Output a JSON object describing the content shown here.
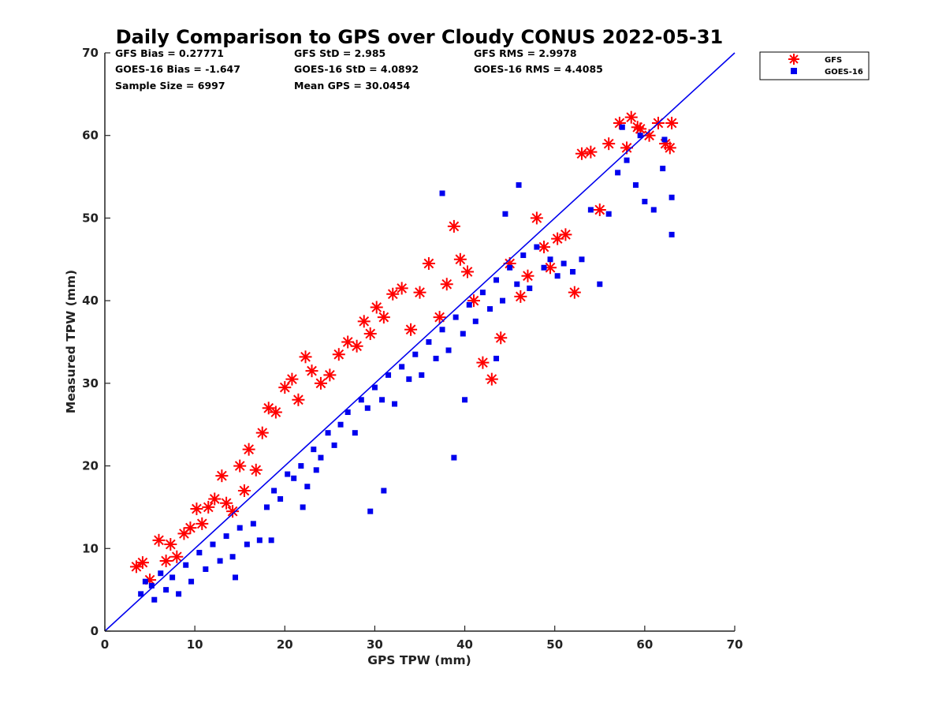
{
  "chart_data": {
    "type": "scatter",
    "title": "Daily Comparison to GPS over Cloudy CONUS 2022-05-31",
    "xlabel": "GPS TPW (mm)",
    "ylabel": "Measured TPW (mm)",
    "xlim": [
      0,
      70
    ],
    "ylim": [
      0,
      70
    ],
    "xticks": [
      "0",
      "10",
      "20",
      "30",
      "40",
      "50",
      "60",
      "70"
    ],
    "yticks": [
      "0",
      "10",
      "20",
      "30",
      "40",
      "50",
      "60",
      "70"
    ],
    "grid": false,
    "legend_position": "outside-top-right",
    "reference_line": {
      "x": [
        0,
        70
      ],
      "y": [
        0,
        70
      ],
      "color": "#0000ee"
    },
    "stats": {
      "gfs_bias": "GFS Bias = 0.27771",
      "gfs_std": "GFS StD = 2.985",
      "gfs_rms": "GFS RMS = 2.9978",
      "goes_bias": "GOES-16 Bias = -1.647",
      "goes_std": "GOES-16 StD = 4.0892",
      "goes_rms": "GOES-16 RMS = 4.4085",
      "sample_size": "Sample Size = 6997",
      "mean_gps": "Mean GPS = 30.0454"
    },
    "series": [
      {
        "name": "GFS",
        "marker": "asterisk",
        "color": "#ff0000",
        "x": [
          3.5,
          4.2,
          5.0,
          6.0,
          6.8,
          7.3,
          8.0,
          8.8,
          9.5,
          10.2,
          10.8,
          11.5,
          12.2,
          13.0,
          13.5,
          14.2,
          15.0,
          15.5,
          16.0,
          16.8,
          17.5,
          18.2,
          19.0,
          20.0,
          20.8,
          21.5,
          22.3,
          23.0,
          24.0,
          25.0,
          26.0,
          27.0,
          28.0,
          28.8,
          29.5,
          30.2,
          31.0,
          32.0,
          33.0,
          34.0,
          35.0,
          36.0,
          37.2,
          38.0,
          38.8,
          39.5,
          40.3,
          41.0,
          42.0,
          43.0,
          44.0,
          45.0,
          46.2,
          47.0,
          48.0,
          48.8,
          49.5,
          50.3,
          51.2,
          52.2,
          53.0,
          54.0,
          55.0,
          56.0,
          57.2,
          58.0,
          58.5,
          59.5,
          60.5,
          61.5,
          62.3,
          63.0,
          62.8,
          59.2
        ],
        "y": [
          7.8,
          8.3,
          6.2,
          11.0,
          8.5,
          10.5,
          9.0,
          11.8,
          12.5,
          14.8,
          13.0,
          15.0,
          16.0,
          18.8,
          15.5,
          14.5,
          20.0,
          17.0,
          22.0,
          19.5,
          24.0,
          27.0,
          26.5,
          29.5,
          30.5,
          28.0,
          33.2,
          31.5,
          30.0,
          31.0,
          33.5,
          35.0,
          34.5,
          37.5,
          36.0,
          39.2,
          38.0,
          40.8,
          41.5,
          36.5,
          41.0,
          44.5,
          38.0,
          42.0,
          49.0,
          45.0,
          43.5,
          40.0,
          32.5,
          30.5,
          35.5,
          44.5,
          40.5,
          43.0,
          50.0,
          46.5,
          44.0,
          47.5,
          48.0,
          41.0,
          57.8,
          58.0,
          51.0,
          59.0,
          61.5,
          58.5,
          62.2,
          60.8,
          60.0,
          61.5,
          59.0,
          61.5,
          58.5,
          61.0
        ]
      },
      {
        "name": "GOES-16",
        "marker": "square",
        "color": "#0000ee",
        "x": [
          4.0,
          4.5,
          5.2,
          5.5,
          6.2,
          6.8,
          7.5,
          8.2,
          9.0,
          9.6,
          10.5,
          11.2,
          12.0,
          12.8,
          13.5,
          14.2,
          15.0,
          15.8,
          16.5,
          17.2,
          18.0,
          18.8,
          19.5,
          20.3,
          21.0,
          21.8,
          22.5,
          23.2,
          24.0,
          24.8,
          25.5,
          26.2,
          27.0,
          27.8,
          28.5,
          29.2,
          30.0,
          30.8,
          31.5,
          32.2,
          33.0,
          33.8,
          34.5,
          35.2,
          36.0,
          36.8,
          37.5,
          38.2,
          39.0,
          39.8,
          40.5,
          41.2,
          42.0,
          42.8,
          43.5,
          44.2,
          45.0,
          45.8,
          46.5,
          47.2,
          48.0,
          48.8,
          49.5,
          50.3,
          51.0,
          52.0,
          53.0,
          54.0,
          55.0,
          56.0,
          57.0,
          58.0,
          59.0,
          60.0,
          61.0,
          62.0,
          63.0,
          63.0,
          62.2,
          59.5,
          57.5,
          29.5,
          23.5,
          37.5,
          46.0,
          40.0,
          43.5,
          31.0,
          22.0,
          18.5,
          14.5,
          38.8,
          44.5
        ],
        "y": [
          4.5,
          6.0,
          5.5,
          3.8,
          7.0,
          5.0,
          6.5,
          4.5,
          8.0,
          6.0,
          9.5,
          7.5,
          10.5,
          8.5,
          11.5,
          9.0,
          12.5,
          10.5,
          13.0,
          11.0,
          15.0,
          17.0,
          16.0,
          19.0,
          18.5,
          20.0,
          17.5,
          22.0,
          21.0,
          24.0,
          22.5,
          25.0,
          26.5,
          24.0,
          28.0,
          27.0,
          29.5,
          28.0,
          31.0,
          27.5,
          32.0,
          30.5,
          33.5,
          31.0,
          35.0,
          33.0,
          36.5,
          34.0,
          38.0,
          36.0,
          39.5,
          37.5,
          41.0,
          39.0,
          42.5,
          40.0,
          44.0,
          42.0,
          45.5,
          41.5,
          46.5,
          44.0,
          45.0,
          43.0,
          44.5,
          43.5,
          45.0,
          51.0,
          42.0,
          50.5,
          55.5,
          57.0,
          54.0,
          52.0,
          51.0,
          56.0,
          48.0,
          52.5,
          59.5,
          60.0,
          61.0,
          14.5,
          19.5,
          53.0,
          54.0,
          28.0,
          33.0,
          17.0,
          15.0,
          11.0,
          6.5,
          21.0,
          50.5
        ]
      }
    ]
  }
}
